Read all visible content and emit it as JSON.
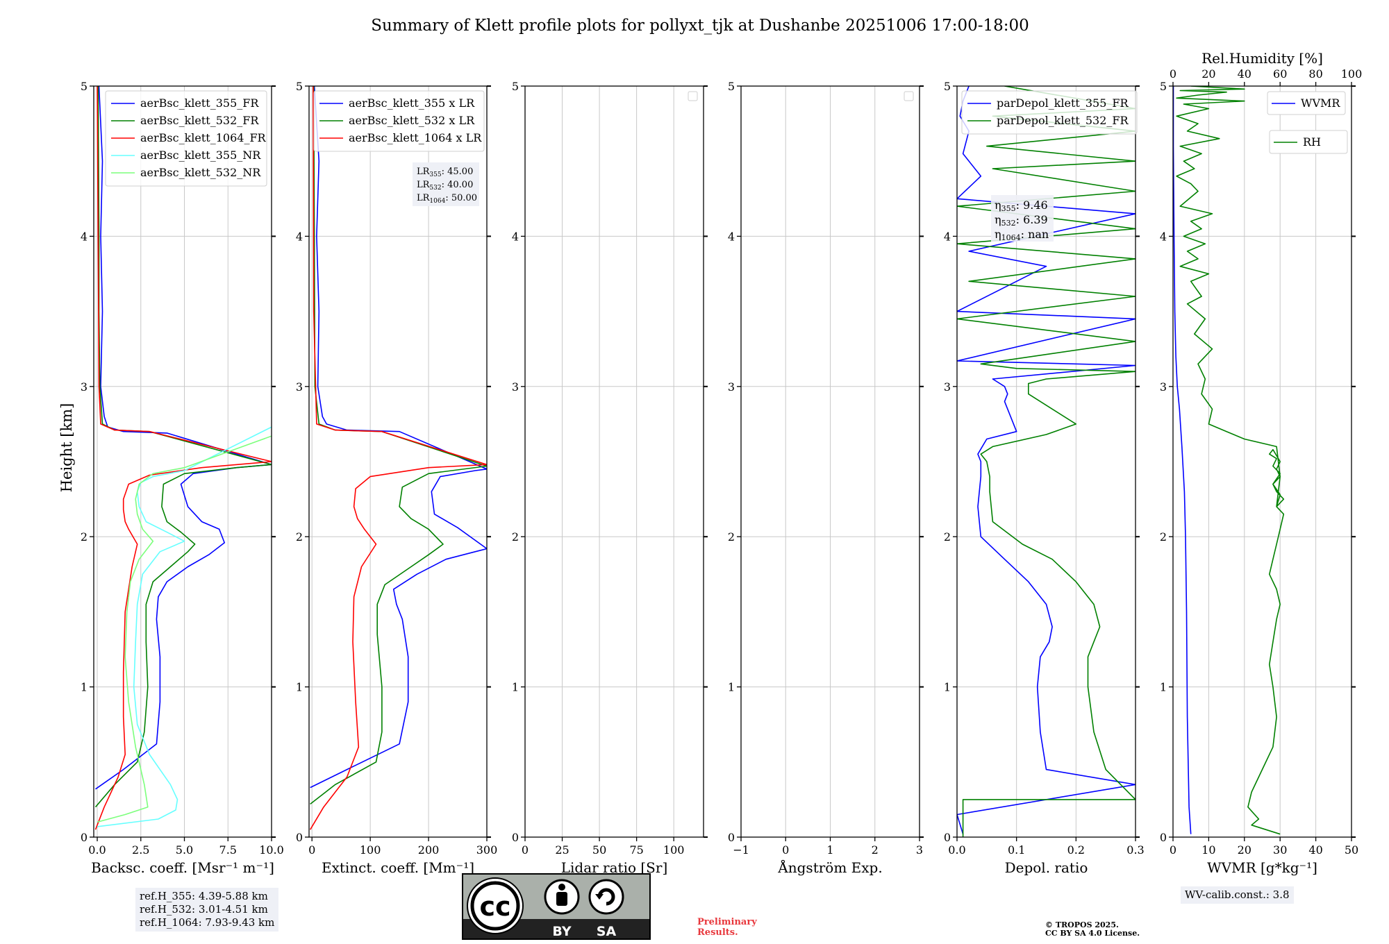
{
  "title": "Summary of Klett profile plots for pollyxt_tjk at Dushanbe 20251006 17:00-18:00",
  "ylabel": "Height [km]",
  "ref_heights": [
    "ref.H_355: 4.39-5.88 km",
    "ref.H_532: 3.01-4.51 km",
    "ref.H_1064: 7.93-9.43 km"
  ],
  "wv_calib": "WV-calib.const.: 3.8",
  "preliminary": [
    "Preliminary",
    "Results."
  ],
  "copyright": [
    "© TROPOS 2025.",
    "CC BY SA 4.0 License."
  ],
  "cc_badge": {
    "by": "BY",
    "sa": "SA",
    "cc": "cc"
  },
  "colors": {
    "b355": "#0000ff",
    "g532": "#008000",
    "r1064": "#ff0000",
    "c355nr": "#66ffff",
    "g532nr": "#7cff7c"
  },
  "chart_data": [
    {
      "type": "line",
      "id": "bsc",
      "xlabel": "Backsc. coeff. [Msr⁻¹ m⁻¹]",
      "xlim": [
        -0.2,
        10
      ],
      "ylim": [
        0,
        5
      ],
      "xticks": [
        0.0,
        2.5,
        5.0,
        7.5,
        10.0
      ],
      "xticklabels": [
        "0.0",
        "2.5",
        "5.0",
        "7.5",
        "10.0"
      ],
      "yticks": [
        0,
        1,
        2,
        3,
        4,
        5
      ],
      "grid": true,
      "legend": "top-right",
      "series": [
        {
          "name": "aerBsc_klett_355_FR",
          "color": "#0000ff",
          "x": [
            -0.1,
            1.5,
            3.4,
            3.6,
            3.6,
            3.4,
            3.5,
            4.0,
            5.2,
            6.4,
            7.3,
            7.0,
            6.0,
            5.2,
            4.8,
            5.5,
            8.0,
            10.0,
            4.0,
            1.5,
            0.6,
            0.4,
            0.2,
            0.3,
            0.2,
            0.3,
            0.1
          ],
          "y": [
            0.32,
            0.45,
            0.62,
            0.9,
            1.2,
            1.45,
            1.6,
            1.7,
            1.8,
            1.88,
            1.96,
            2.05,
            2.1,
            2.2,
            2.35,
            2.42,
            2.46,
            2.48,
            2.69,
            2.7,
            2.73,
            2.8,
            3.0,
            3.5,
            4.0,
            4.5,
            5.0
          ]
        },
        {
          "name": "aerBsc_klett_532_FR",
          "color": "#008000",
          "x": [
            -0.1,
            1.0,
            2.3,
            2.7,
            2.9,
            2.8,
            2.8,
            3.2,
            4.2,
            5.2,
            5.6,
            4.8,
            4.0,
            3.7,
            3.8,
            5.0,
            8.0,
            10.0,
            3.0,
            1.0,
            0.3,
            0.15,
            0.1,
            0.1,
            0.05
          ],
          "y": [
            0.2,
            0.35,
            0.5,
            0.7,
            1.0,
            1.3,
            1.55,
            1.7,
            1.8,
            1.9,
            1.95,
            2.03,
            2.1,
            2.2,
            2.35,
            2.42,
            2.46,
            2.48,
            2.7,
            2.71,
            2.75,
            3.0,
            3.5,
            4.0,
            5.0
          ]
        },
        {
          "name": "aerBsc_klett_1064_FR",
          "color": "#ff0000",
          "x": [
            -0.1,
            0.4,
            1.2,
            1.6,
            1.5,
            1.5,
            1.6,
            2.0,
            2.3,
            1.8,
            1.6,
            1.5,
            1.5,
            1.8,
            3.0,
            6.0,
            10.0,
            3.0,
            1.0,
            0.2,
            0.1,
            0.05,
            0.0
          ],
          "y": [
            0.05,
            0.2,
            0.4,
            0.55,
            0.8,
            1.1,
            1.5,
            1.8,
            1.95,
            2.05,
            2.1,
            2.18,
            2.25,
            2.35,
            2.41,
            2.46,
            2.5,
            2.7,
            2.71,
            2.75,
            3.0,
            4.0,
            5.0
          ]
        },
        {
          "name": "aerBsc_klett_355_NR",
          "color": "#66ffff",
          "x": [
            0.0,
            3.5,
            4.5,
            4.6,
            4.2,
            3.0,
            2.3,
            2.1,
            2.2,
            2.3,
            2.6,
            3.6,
            5.0,
            4.0,
            2.8,
            2.4,
            2.3,
            2.5,
            3.2,
            5.0,
            10.0
          ],
          "y": [
            0.07,
            0.12,
            0.18,
            0.25,
            0.35,
            0.55,
            0.75,
            1.0,
            1.3,
            1.55,
            1.75,
            1.9,
            1.97,
            2.03,
            2.1,
            2.2,
            2.3,
            2.36,
            2.4,
            2.44,
            2.73
          ]
        },
        {
          "name": "aerBsc_klett_532_NR",
          "color": "#7cff7c",
          "x": [
            0.0,
            1.6,
            2.9,
            2.7,
            2.2,
            1.8,
            1.6,
            1.7,
            1.9,
            2.4,
            3.2,
            2.6,
            2.3,
            2.2,
            2.4,
            3.2,
            5.0,
            10.0
          ],
          "y": [
            0.1,
            0.15,
            0.2,
            0.35,
            0.6,
            0.9,
            1.2,
            1.5,
            1.7,
            1.85,
            1.97,
            2.05,
            2.15,
            2.25,
            2.35,
            2.42,
            2.46,
            2.67
          ]
        }
      ]
    },
    {
      "type": "line",
      "id": "ext",
      "xlabel": "Extinct. coeff. [Mm⁻¹]",
      "xlim": [
        -5,
        300
      ],
      "ylim": [
        0,
        5
      ],
      "xticks": [
        0,
        100,
        200,
        300
      ],
      "xticklabels": [
        "0",
        "100",
        "200",
        "300"
      ],
      "yticks": [
        0,
        1,
        2,
        3,
        4,
        5
      ],
      "grid": true,
      "legend": "top-left",
      "lr_labels": [
        "45.00",
        "40.00",
        "50.00"
      ],
      "lr_prefix": "LR",
      "lr_subs": [
        "355",
        "532",
        "1064"
      ],
      "series": [
        {
          "name": "aerBsc_klett_355 x LR",
          "color": "#0000ff",
          "x": [
            -3,
            60,
            150,
            165,
            165,
            155,
            145,
            140,
            180,
            230,
            280,
            300,
            250,
            210,
            205,
            220,
            280,
            300,
            150,
            60,
            25,
            18,
            10,
            12,
            8,
            12,
            4
          ],
          "y": [
            0.33,
            0.45,
            0.62,
            0.9,
            1.2,
            1.45,
            1.55,
            1.65,
            1.75,
            1.85,
            1.9,
            1.92,
            2.06,
            2.15,
            2.3,
            2.4,
            2.44,
            2.45,
            2.7,
            2.71,
            2.75,
            2.8,
            3.0,
            3.5,
            4.0,
            4.5,
            5.0
          ]
        },
        {
          "name": "aerBsc_klett_532 x LR",
          "color": "#008000",
          "x": [
            -3,
            40,
            110,
            120,
            120,
            112,
            112,
            125,
            170,
            200,
            225,
            200,
            170,
            150,
            155,
            200,
            300,
            120,
            40,
            12,
            5,
            4,
            3
          ],
          "y": [
            0.22,
            0.35,
            0.5,
            0.7,
            1.0,
            1.35,
            1.55,
            1.68,
            1.8,
            1.88,
            1.95,
            2.05,
            2.12,
            2.2,
            2.33,
            2.42,
            2.47,
            2.7,
            2.71,
            2.75,
            3.0,
            4.0,
            5.0
          ]
        },
        {
          "name": "aerBsc_klett_1064 x LR",
          "color": "#ff0000",
          "x": [
            -3,
            20,
            60,
            80,
            75,
            70,
            72,
            85,
            110,
            90,
            78,
            72,
            75,
            100,
            200,
            300,
            120,
            40,
            8,
            3,
            2
          ],
          "y": [
            0.05,
            0.2,
            0.4,
            0.6,
            0.9,
            1.3,
            1.6,
            1.8,
            1.95,
            2.05,
            2.12,
            2.2,
            2.32,
            2.4,
            2.46,
            2.48,
            2.7,
            2.71,
            2.75,
            3.5,
            5.0
          ]
        }
      ]
    },
    {
      "type": "line",
      "id": "lr",
      "xlabel": "Lidar ratio [Sr]",
      "xlim": [
        0,
        120
      ],
      "ylim": [
        0,
        5
      ],
      "xticks": [
        0,
        25,
        50,
        75,
        100
      ],
      "xticklabels": [
        "0",
        "25",
        "50",
        "75",
        "100"
      ],
      "yticks": [
        0,
        1,
        2,
        3,
        4,
        5
      ],
      "grid": true,
      "legend": "top-right-empty",
      "series": []
    },
    {
      "type": "line",
      "id": "ang",
      "xlabel": "Ångström Exp.",
      "xlim": [
        -1,
        3
      ],
      "ylim": [
        0,
        5
      ],
      "xticks": [
        -1,
        0,
        1,
        2,
        3
      ],
      "xticklabels": [
        "−1",
        "0",
        "1",
        "2",
        "3"
      ],
      "yticks": [
        0,
        1,
        2,
        3,
        4,
        5
      ],
      "grid": true,
      "legend": "top-right-empty",
      "series": []
    },
    {
      "type": "line",
      "id": "depol",
      "xlabel": "Depol. ratio",
      "xlim": [
        0,
        0.3
      ],
      "ylim": [
        0,
        5
      ],
      "xticks": [
        0.0,
        0.1,
        0.2,
        0.3
      ],
      "xticklabels": [
        "0.0",
        "0.1",
        "0.2",
        "0.3"
      ],
      "yticks": [
        0,
        1,
        2,
        3,
        4,
        5
      ],
      "grid": true,
      "legend": "top-left",
      "eta_prefix": "η",
      "eta_subs": [
        "355",
        "532",
        "1064"
      ],
      "eta_labels": [
        "9.46",
        "6.39",
        "nan"
      ],
      "series": [
        {
          "name": "parDepol_klett_355_FR",
          "color": "#0000ff",
          "x": [
            0.01,
            0.0,
            0.3,
            0.15,
            0.14,
            0.135,
            0.14,
            0.155,
            0.16,
            0.15,
            0.12,
            0.08,
            0.04,
            0.035,
            0.04,
            0.04,
            0.035,
            0.05,
            0.1,
            0.09,
            0.08,
            0.085,
            0.08,
            0.06,
            0.3,
            0.0,
            0.3,
            0.0,
            0.15,
            0.02,
            0.3,
            0.0,
            0.04,
            0.01,
            0.02,
            0.005,
            0.01,
            0.02
          ],
          "y": [
            0.02,
            0.15,
            0.35,
            0.45,
            0.7,
            1.0,
            1.2,
            1.3,
            1.4,
            1.55,
            1.7,
            1.85,
            2.0,
            2.2,
            2.4,
            2.5,
            2.55,
            2.65,
            2.7,
            2.8,
            2.9,
            2.95,
            3.0,
            3.05,
            3.14,
            3.17,
            3.45,
            3.5,
            3.8,
            3.9,
            4.15,
            4.25,
            4.4,
            4.55,
            4.7,
            4.8,
            4.9,
            5.0
          ]
        },
        {
          "name": "parDepol_klett_532_FR",
          "color": "#008000",
          "x": [
            0.01,
            0.01,
            0.3,
            0.25,
            0.23,
            0.22,
            0.22,
            0.23,
            0.24,
            0.23,
            0.2,
            0.16,
            0.11,
            0.06,
            0.055,
            0.055,
            0.05,
            0.04,
            0.06,
            0.15,
            0.2,
            0.16,
            0.12,
            0.12,
            0.15,
            0.3,
            0.1,
            0.04,
            0.3,
            0.0,
            0.3,
            0.02,
            0.3,
            0.0,
            0.3,
            0.0,
            0.3,
            0.06,
            0.3,
            0.05,
            0.3,
            0.06,
            0.3,
            0.08
          ],
          "y": [
            0.0,
            0.25,
            0.25,
            0.45,
            0.7,
            1.0,
            1.2,
            1.3,
            1.4,
            1.55,
            1.7,
            1.85,
            1.95,
            2.1,
            2.3,
            2.4,
            2.5,
            2.55,
            2.6,
            2.68,
            2.75,
            2.85,
            2.95,
            3.02,
            3.05,
            3.1,
            3.12,
            3.15,
            3.3,
            3.45,
            3.6,
            3.7,
            3.85,
            3.95,
            4.05,
            4.2,
            4.3,
            4.45,
            4.5,
            4.6,
            4.7,
            4.8,
            4.85,
            5.0
          ]
        }
      ]
    },
    {
      "type": "line",
      "id": "wv",
      "xlabel": "WVMR [g*kg⁻¹]",
      "xlim": [
        0,
        50
      ],
      "ylim": [
        0,
        5
      ],
      "xticks": [
        0,
        10,
        20,
        30,
        40,
        50
      ],
      "xticklabels": [
        "0",
        "10",
        "20",
        "30",
        "40",
        "50"
      ],
      "yticks": [
        0,
        1,
        2,
        3,
        4,
        5
      ],
      "grid": true,
      "top_axis": {
        "label": "Rel.Humidity [%]",
        "ticks": [
          0,
          20,
          40,
          60,
          80,
          100
        ],
        "ticklabels": [
          "0",
          "20",
          "40",
          "60",
          "80",
          "100"
        ],
        "lim": [
          0,
          100
        ]
      },
      "legend": "top-right",
      "series": [
        {
          "name": "WVMR",
          "color": "#0000ff",
          "x": [
            5.0,
            4.5,
            4.0,
            3.8,
            3.5,
            3.2,
            2.5,
            1.8,
            1.2,
            0.8,
            0.5,
            0.3,
            0.2,
            0.1,
            0.1
          ],
          "y": [
            0.02,
            0.2,
            0.8,
            1.5,
            2.0,
            2.3,
            2.6,
            2.85,
            3.0,
            3.2,
            3.5,
            4.0,
            4.3,
            4.6,
            5.0
          ],
          "axis": "bottom"
        },
        {
          "name": "RH",
          "color": "#008000",
          "x": [
            60,
            44,
            48,
            42,
            44,
            50,
            56,
            58,
            56,
            54,
            56,
            58,
            60,
            58,
            54,
            56,
            58,
            60,
            62,
            58,
            60,
            56,
            60,
            56,
            58,
            54,
            56,
            60,
            58,
            60,
            56,
            58,
            62,
            58,
            60,
            58,
            40,
            30,
            20,
            22,
            16,
            18,
            14,
            22,
            12,
            18,
            8,
            16,
            10,
            20,
            4,
            14,
            8,
            18,
            6,
            16,
            10,
            22,
            4,
            14,
            10,
            2,
            12,
            6,
            16,
            4,
            26,
            8,
            14,
            2,
            20,
            6,
            40,
            2,
            14,
            30,
            4,
            40,
            10
          ],
          "y": [
            0.02,
            0.08,
            0.12,
            0.2,
            0.3,
            0.45,
            0.6,
            0.8,
            1.0,
            1.15,
            1.3,
            1.45,
            1.55,
            1.65,
            1.75,
            1.85,
            1.95,
            2.05,
            2.15,
            2.2,
            2.28,
            2.35,
            2.42,
            2.47,
            2.52,
            2.55,
            2.58,
            2.5,
            2.45,
            2.4,
            2.35,
            2.3,
            2.25,
            2.2,
            2.4,
            2.6,
            2.65,
            2.7,
            2.75,
            2.85,
            2.95,
            3.05,
            3.15,
            3.25,
            3.35,
            3.45,
            3.55,
            3.6,
            3.7,
            3.75,
            3.8,
            3.85,
            3.9,
            3.95,
            4.0,
            4.05,
            4.1,
            4.15,
            4.2,
            4.3,
            4.35,
            4.4,
            4.45,
            4.5,
            4.55,
            4.6,
            4.65,
            4.7,
            4.75,
            4.8,
            4.85,
            4.88,
            4.9,
            4.92,
            4.94,
            4.96,
            4.97,
            4.98,
            5.0
          ],
          "axis": "top"
        }
      ]
    }
  ]
}
